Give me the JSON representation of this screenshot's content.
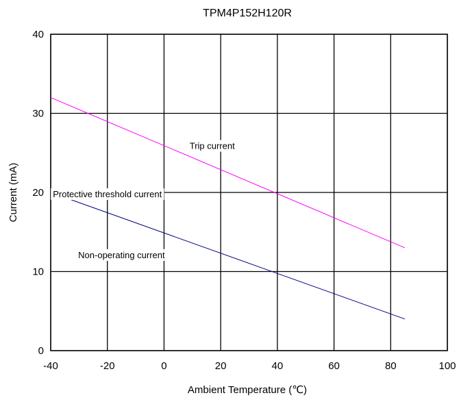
{
  "chart_data": {
    "type": "line",
    "title": "TPM4P152H120R",
    "xlabel": "Ambient Temperature (℃)",
    "ylabel": "Current (mA)",
    "xlim": [
      -40,
      100
    ],
    "ylim": [
      0,
      40
    ],
    "x_ticks": [
      "-40",
      "-20",
      "0",
      "20",
      "40",
      "60",
      "80",
      "100"
    ],
    "y_ticks": [
      "0",
      "10",
      "20",
      "30",
      "40"
    ],
    "grid": true,
    "series": [
      {
        "name": "Trip current",
        "color": "#ff00ff",
        "x": [
          -40,
          85
        ],
        "y": [
          32,
          13
        ]
      },
      {
        "name": "Non-operating current",
        "color": "#000080",
        "x": [
          -40,
          85
        ],
        "y": [
          20,
          4
        ]
      }
    ],
    "annotations": [
      {
        "text": "Trip current",
        "x": 17,
        "y": 25.8
      },
      {
        "text": "Protective threshold current",
        "x": -20,
        "y": 19.7
      },
      {
        "text": "Non-operating current",
        "x": -15,
        "y": 12
      }
    ]
  }
}
